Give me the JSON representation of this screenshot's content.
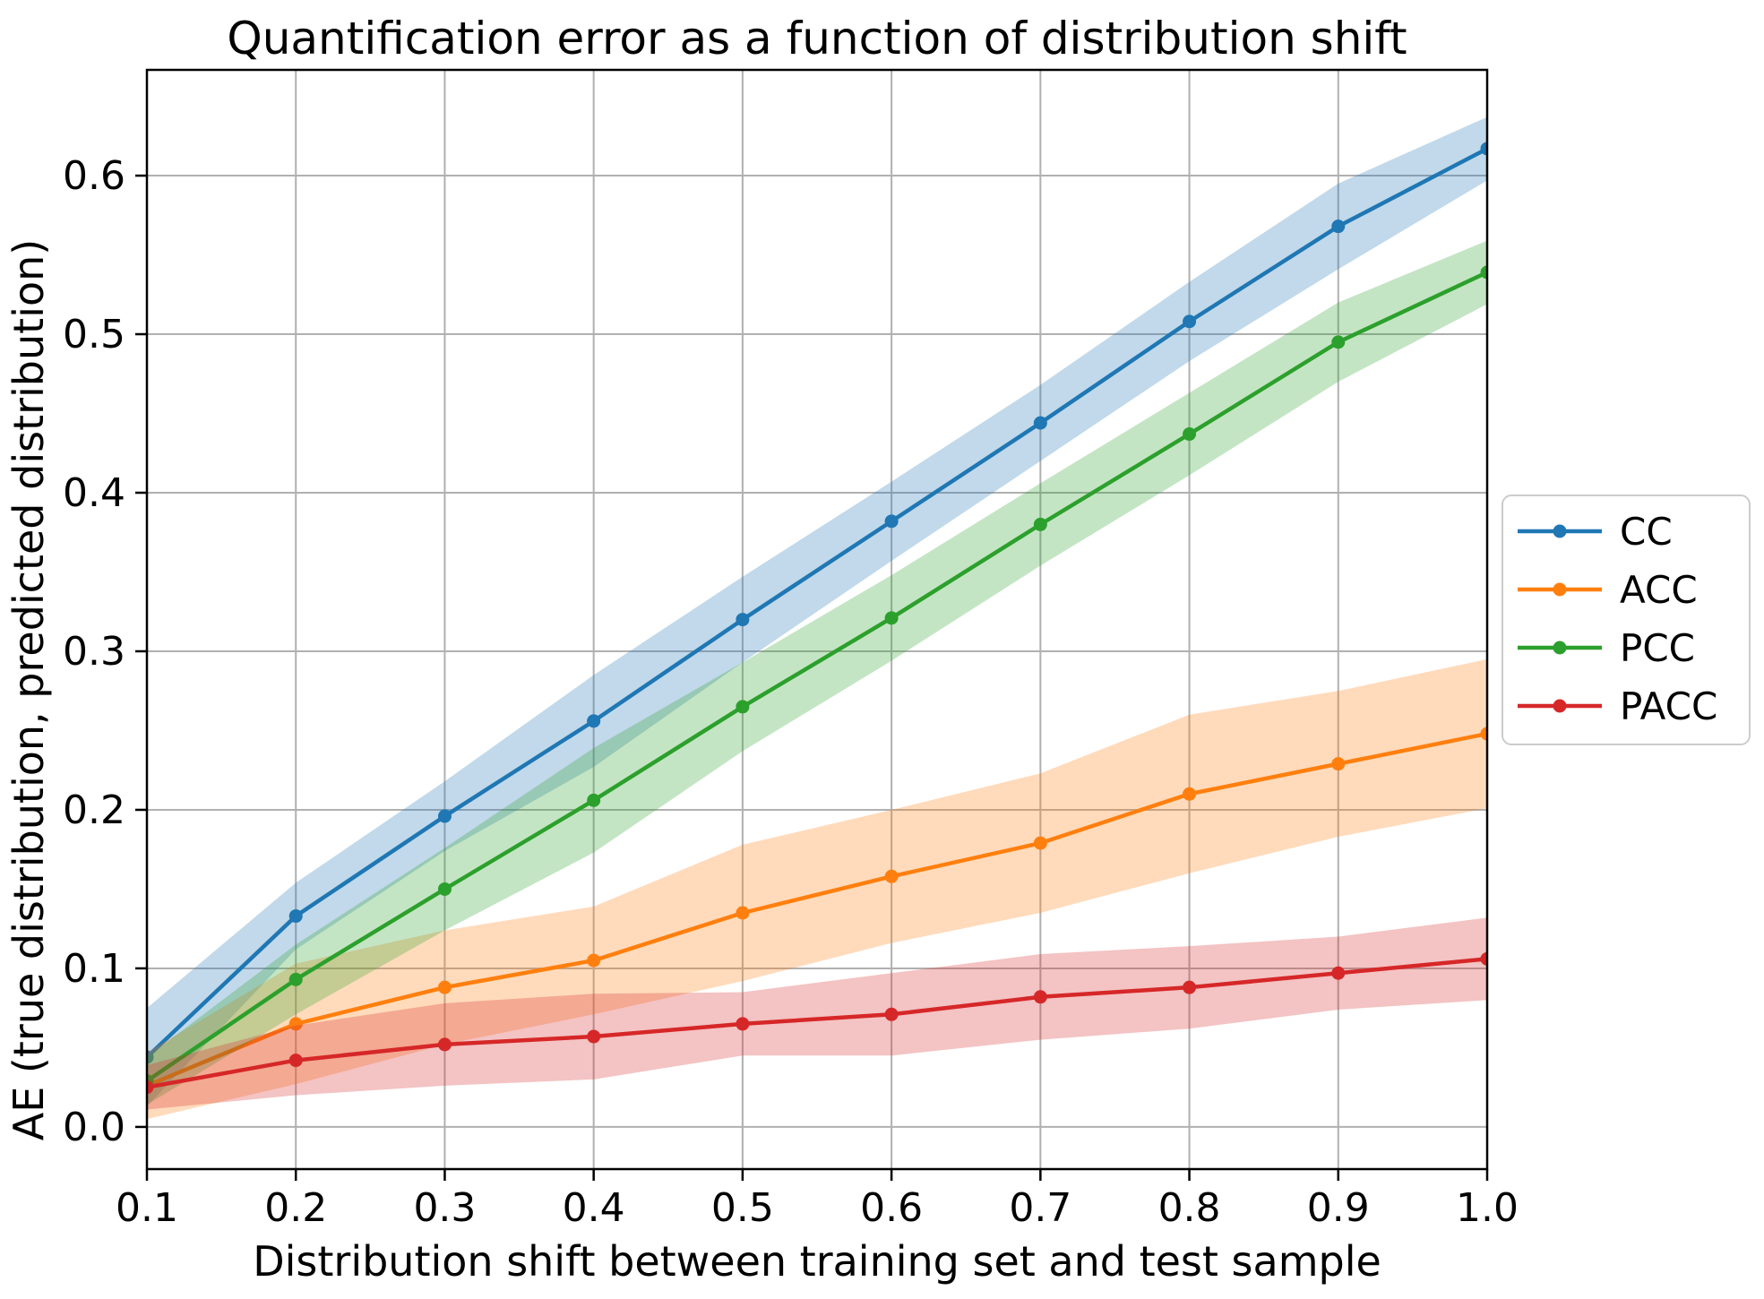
{
  "chart_data": {
    "type": "line",
    "title": "Quantification error as a function of distribution shift",
    "xlabel": "Distribution shift between training set and test sample",
    "ylabel": "AE (true distribution, predicted distribution)",
    "x": [
      0.1,
      0.2,
      0.3,
      0.4,
      0.5,
      0.6,
      0.7,
      0.8,
      0.9,
      1.0
    ],
    "xlim": [
      0.1,
      1.0
    ],
    "ylim": [
      -0.0266,
      0.6667
    ],
    "xtick_labels": [
      "0.1",
      "0.2",
      "0.3",
      "0.4",
      "0.5",
      "0.6",
      "0.7",
      "0.8",
      "0.9",
      "1.0"
    ],
    "xtick_values": [
      0.1,
      0.2,
      0.3,
      0.4,
      0.5,
      0.6,
      0.7,
      0.8,
      0.9,
      1.0
    ],
    "ytick_labels": [
      "0.0",
      "0.1",
      "0.2",
      "0.3",
      "0.4",
      "0.5",
      "0.6"
    ],
    "ytick_values": [
      0.0,
      0.1,
      0.2,
      0.3,
      0.4,
      0.5,
      0.6
    ],
    "grid": true,
    "grid_color": "#b0b0b0",
    "background": "#ffffff",
    "band_opacity": 0.28,
    "legend_position": "outside-right",
    "series": [
      {
        "name": "CC",
        "color": "#1f77b4",
        "values": [
          0.044,
          0.133,
          0.196,
          0.256,
          0.32,
          0.382,
          0.444,
          0.508,
          0.568,
          0.617
        ],
        "band_halfwidth": [
          0.031,
          0.021,
          0.022,
          0.029,
          0.027,
          0.025,
          0.024,
          0.025,
          0.027,
          0.02
        ]
      },
      {
        "name": "ACC",
        "color": "#ff7f0e",
        "values": [
          0.026,
          0.065,
          0.088,
          0.105,
          0.135,
          0.158,
          0.179,
          0.21,
          0.229,
          0.248
        ],
        "band_halfwidth": [
          0.021,
          0.038,
          0.036,
          0.034,
          0.043,
          0.042,
          0.044,
          0.05,
          0.046,
          0.047
        ]
      },
      {
        "name": "PCC",
        "color": "#2ca02c",
        "values": [
          0.029,
          0.093,
          0.15,
          0.206,
          0.265,
          0.321,
          0.38,
          0.437,
          0.495,
          0.539
        ],
        "band_halfwidth": [
          0.015,
          0.022,
          0.026,
          0.033,
          0.028,
          0.027,
          0.026,
          0.026,
          0.025,
          0.02
        ]
      },
      {
        "name": "PACC",
        "color": "#d62728",
        "values": [
          0.025,
          0.042,
          0.052,
          0.057,
          0.065,
          0.071,
          0.082,
          0.088,
          0.097,
          0.106
        ],
        "band_halfwidth": [
          0.014,
          0.022,
          0.026,
          0.027,
          0.02,
          0.026,
          0.027,
          0.026,
          0.023,
          0.026
        ]
      }
    ]
  }
}
